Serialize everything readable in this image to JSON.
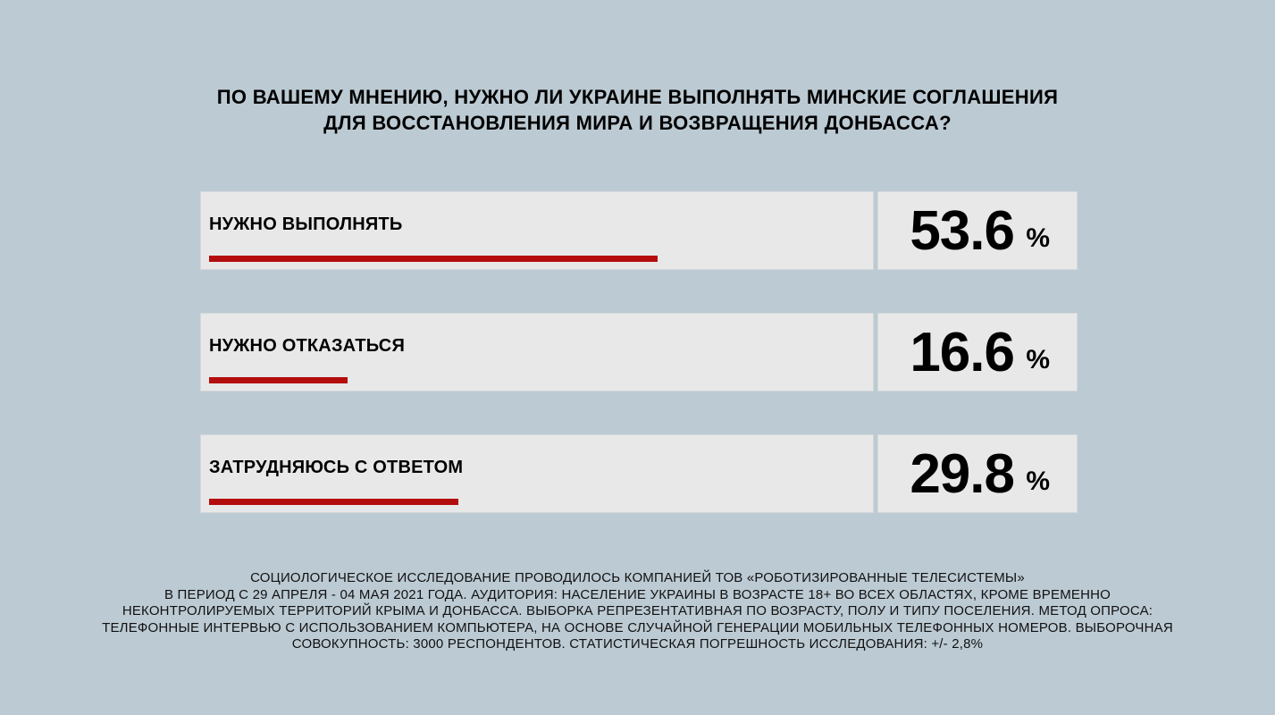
{
  "title": {
    "line1": "ПО ВАШЕМУ МНЕНИЮ, НУЖНО ЛИ УКРАИНЕ ВЫПОЛНЯТЬ МИНСКИЕ СОГЛАШЕНИЯ",
    "line2": "ДЛЯ ВОССТАНОВЛЕНИЯ МИРА И ВОЗВРАЩЕНИЯ ДОНБАССА?"
  },
  "chart_data": {
    "type": "bar",
    "title": "ПО ВАШЕМУ МНЕНИЮ, НУЖНО ЛИ УКРАИНЕ ВЫПОЛНЯТЬ МИНСКИЕ СОГЛАШЕНИЯ ДЛЯ ВОССТАНОВЛЕНИЯ МИРА И ВОЗВРАЩЕНИЯ ДОНБАССА?",
    "categories": [
      "НУЖНО ВЫПОЛНЯТЬ",
      "НУЖНО ОТКАЗАТЬСЯ",
      "ЗАТРУДНЯЮСЬ С ОТВЕТОМ"
    ],
    "values": [
      53.6,
      16.6,
      29.8
    ],
    "value_labels": [
      "53.6",
      "16.6",
      "29.8"
    ],
    "unit": "%",
    "xlim": [
      0,
      100
    ],
    "bar_color": "#b40d0d"
  },
  "footnote": {
    "line1": "СОЦИОЛОГИЧЕСКОЕ ИССЛЕДОВАНИЕ ПРОВОДИЛОСЬ КОМПАНИЕЙ ТОВ «РОБОТИЗИРОВАННЫЕ ТЕЛЕСИСТЕМЫ»",
    "line2": "В ПЕРИОД С 29 АПРЕЛЯ - 04 МАЯ 2021 ГОДА. АУДИТОРИЯ: НАСЕЛЕНИЕ УКРАИНЫ В ВОЗРАСТЕ 18+ ВО ВСЕХ ОБЛАСТЯХ, КРОМЕ ВРЕМЕННО",
    "line3": "НЕКОНТРОЛИРУЕМЫХ ТЕРРИТОРИЙ КРЫМА И ДОНБАССА. ВЫБОРКА РЕПРЕЗЕНТАТИВНАЯ ПО ВОЗРАСТУ, ПОЛУ И ТИПУ ПОСЕЛЕНИЯ. МЕТОД ОПРОСА:",
    "line4": "ТЕЛЕФОННЫЕ ИНТЕРВЬЮ С ИСПОЛЬЗОВАНИЕМ КОМПЬЮТЕРА, НА ОСНОВЕ СЛУЧАЙНОЙ ГЕНЕРАЦИИ МОБИЛЬНЫХ ТЕЛЕФОННЫХ НОМЕРОВ. ВЫБОРОЧНАЯ",
    "line5": "СОВОКУПНОСТЬ: 3000 РЕСПОНДЕНТОВ. СТАТИСТИЧЕСКАЯ ПОГРЕШНОСТЬ ИССЛЕДОВАНИЯ: +/- 2,8%"
  }
}
